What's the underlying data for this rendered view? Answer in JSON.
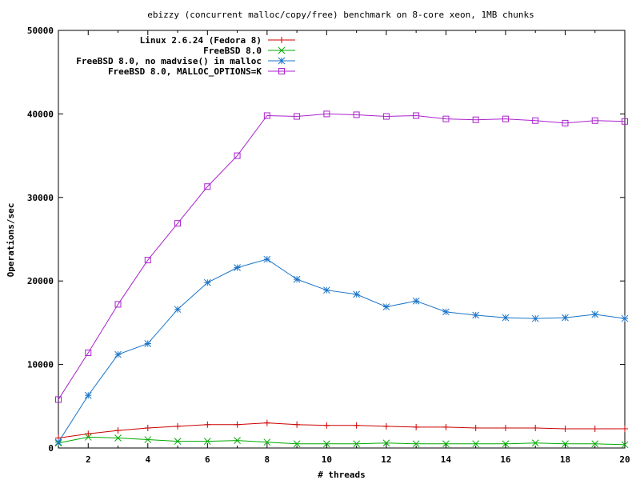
{
  "chart_data": {
    "type": "line",
    "title": "ebizzy (concurrent malloc/copy/free) benchmark on 8-core xeon, 1MB chunks",
    "xlabel": "# threads",
    "ylabel": "Operations/sec",
    "xlim": [
      1,
      20
    ],
    "ylim": [
      0,
      50000
    ],
    "xticks": [
      2,
      4,
      6,
      8,
      10,
      12,
      14,
      16,
      18,
      20
    ],
    "yticks": [
      0,
      10000,
      20000,
      30000,
      40000,
      50000
    ],
    "x": [
      1,
      2,
      3,
      4,
      5,
      6,
      7,
      8,
      9,
      10,
      11,
      12,
      13,
      14,
      15,
      16,
      17,
      18,
      19,
      20
    ],
    "legend_position": "top-left",
    "grid": false,
    "series": [
      {
        "name": "Linux 2.6.24 (Fedora 8)",
        "color": "#cc0000",
        "marker": "plus",
        "values": [
          1200,
          1700,
          2100,
          2400,
          2600,
          2800,
          2800,
          3000,
          2800,
          2700,
          2700,
          2600,
          2500,
          2500,
          2400,
          2400,
          2400,
          2300,
          2300,
          2300
        ]
      },
      {
        "name": "FreeBSD 8.0",
        "color": "#00aa00",
        "marker": "cross",
        "values": [
          600,
          1300,
          1200,
          1000,
          800,
          800,
          900,
          700,
          500,
          500,
          500,
          600,
          500,
          500,
          500,
          500,
          600,
          500,
          500,
          400
        ]
      },
      {
        "name": "FreeBSD 8.0, no madvise() in malloc",
        "color": "#1a75c8",
        "marker": "star",
        "values": [
          700,
          6300,
          11200,
          12500,
          16600,
          19800,
          21600,
          22600,
          20200,
          18900,
          18400,
          16900,
          17600,
          16300,
          15900,
          15600,
          15500,
          15600,
          16000,
          15500
        ]
      },
      {
        "name": "FreeBSD 8.0, MALLOC_OPTIONS=K",
        "color": "#aa22cc",
        "marker": "square",
        "values": [
          5800,
          11400,
          17200,
          22500,
          26900,
          31300,
          35000,
          39800,
          39700,
          40000,
          39900,
          39700,
          39800,
          39400,
          39300,
          39400,
          39200,
          38900,
          39200,
          39100
        ]
      }
    ]
  }
}
